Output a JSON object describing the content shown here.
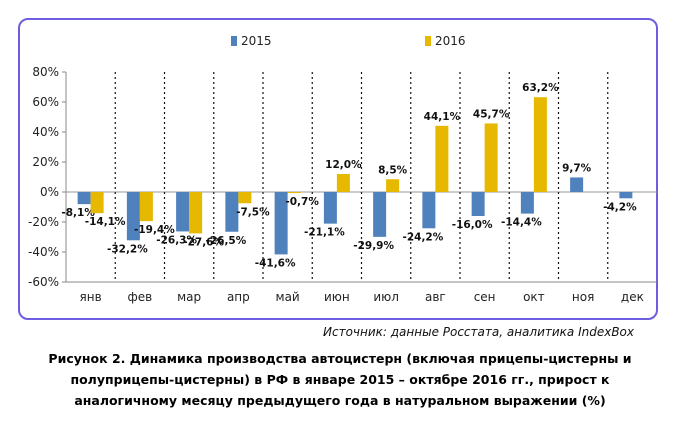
{
  "chart_data": {
    "type": "bar",
    "categories": [
      "янв",
      "фев",
      "мар",
      "апр",
      "май",
      "июн",
      "июл",
      "авг",
      "сен",
      "окт",
      "ноя",
      "дек"
    ],
    "series": [
      {
        "name": "2015",
        "color": "#4f81bd",
        "values": [
          -8.1,
          -32.2,
          -26.3,
          -26.5,
          -41.6,
          -21.1,
          -29.9,
          -24.2,
          -16.0,
          -14.4,
          9.7,
          -4.2
        ],
        "labels": [
          "-8,1%",
          "-32,2%",
          "-26,3%",
          "-26,5%",
          "-41,6%",
          "-21,1%",
          "-29,9%",
          "-24,2%",
          "-16,0%",
          "-14,4%",
          "9,7%",
          "-4,2%"
        ]
      },
      {
        "name": "2016",
        "color": "#e6b800",
        "values": [
          -14.1,
          -19.4,
          -27.6,
          -7.5,
          -0.7,
          12.0,
          8.5,
          44.1,
          45.7,
          63.2,
          null,
          null
        ],
        "labels": [
          "-14,1%",
          "-19,4%",
          "-27,6%",
          "-7,5%",
          "-0,7%",
          "12,0%",
          "8,5%",
          "44,1%",
          "45,7%",
          "63,2%",
          "",
          ""
        ]
      }
    ],
    "ylim": [
      -60,
      80
    ],
    "yticks": [
      -60,
      -40,
      -20,
      0,
      20,
      40,
      60,
      80
    ],
    "ytick_labels": [
      "-60%",
      "-40%",
      "-20%",
      "0%",
      "20%",
      "40%",
      "60%",
      "80%"
    ],
    "legend_position": "top"
  },
  "source_text": "Источник: данные Росстата, аналитика IndexBox",
  "caption": {
    "line1": "Рисунок 2. Динамика производства автоцистерн (включая прицепы-цистерны и",
    "line2": "полуприцепы-цистерны) в РФ в январе 2015 – октябре 2016 гг., прирост к",
    "line3": "аналогичному месяцу предыдущего года в натуральном выражении (%)"
  }
}
